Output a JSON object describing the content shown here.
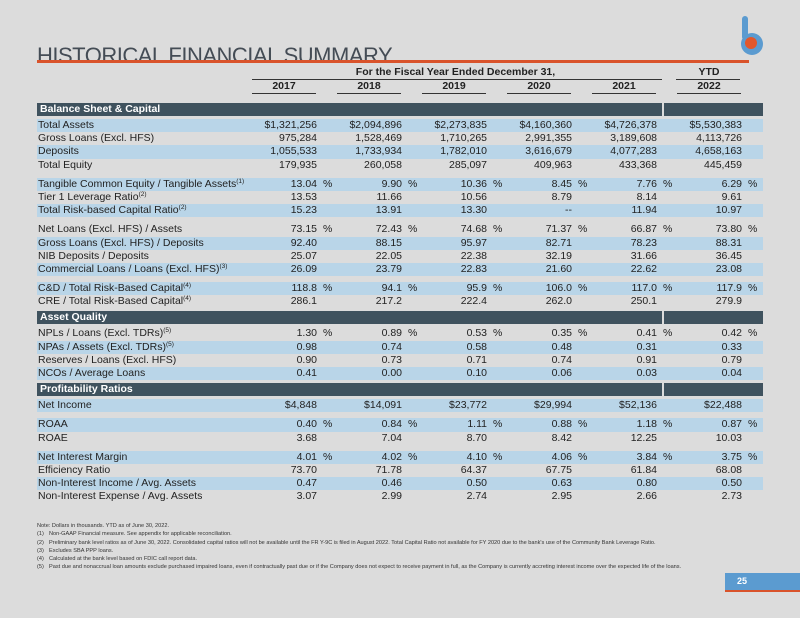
{
  "title": "HISTORICAL FINANCIAL SUMMARY",
  "header": {
    "period_label": "For the Fiscal Year Ended December 31,",
    "ytd_label": "YTD",
    "years": [
      "2017",
      "2018",
      "2019",
      "2020",
      "2021",
      "2022"
    ]
  },
  "sections": [
    {
      "title": "Balance Sheet & Capital",
      "groups": [
        [
          {
            "label": "Total Assets",
            "sup": "",
            "pct": false,
            "shade": true,
            "values": [
              "$1,321,256",
              "$2,094,896",
              "$2,273,835",
              "$4,160,360",
              "$4,726,378",
              "$5,530,383"
            ]
          },
          {
            "label": "Gross Loans (Excl. HFS)",
            "sup": "",
            "pct": false,
            "shade": false,
            "values": [
              "975,284",
              "1,528,469",
              "1,710,265",
              "2,991,355",
              "3,189,608",
              "4,113,726"
            ]
          },
          {
            "label": "Deposits",
            "sup": "",
            "pct": false,
            "shade": true,
            "values": [
              "1,055,533",
              "1,733,934",
              "1,782,010",
              "3,616,679",
              "4,077,283",
              "4,658,163"
            ]
          },
          {
            "label": "Total Equity",
            "sup": "",
            "pct": false,
            "shade": false,
            "values": [
              "179,935",
              "260,058",
              "285,097",
              "409,963",
              "433,368",
              "445,459"
            ]
          }
        ],
        [
          {
            "label": "Tangible Common Equity / Tangible Assets",
            "sup": "(1)",
            "pct": true,
            "shade": true,
            "values": [
              "13.04",
              "9.90",
              "10.36",
              "8.45",
              "7.76",
              "6.29"
            ]
          },
          {
            "label": "Tier 1 Leverage Ratio",
            "sup": "(2)",
            "pct": false,
            "shade": false,
            "values": [
              "13.53",
              "11.66",
              "10.56",
              "8.79",
              "8.14",
              "9.61"
            ]
          },
          {
            "label": "Total Risk-based Capital Ratio",
            "sup": "(2)",
            "pct": false,
            "shade": true,
            "values": [
              "15.23",
              "13.91",
              "13.30",
              "--",
              "11.94",
              "10.97"
            ]
          }
        ],
        [
          {
            "label": "Net Loans (Excl. HFS) / Assets",
            "sup": "",
            "pct": true,
            "shade": false,
            "values": [
              "73.15",
              "72.43",
              "74.68",
              "71.37",
              "66.87",
              "73.80"
            ]
          },
          {
            "label": "Gross Loans (Excl. HFS) / Deposits",
            "sup": "",
            "pct": false,
            "shade": true,
            "values": [
              "92.40",
              "88.15",
              "95.97",
              "82.71",
              "78.23",
              "88.31"
            ]
          },
          {
            "label": "NIB Deposits / Deposits",
            "sup": "",
            "pct": false,
            "shade": false,
            "values": [
              "25.07",
              "22.05",
              "22.38",
              "32.19",
              "31.66",
              "36.45"
            ]
          },
          {
            "label": "Commercial Loans / Loans (Excl. HFS)",
            "sup": "(3)",
            "pct": false,
            "shade": true,
            "values": [
              "26.09",
              "23.79",
              "22.83",
              "21.60",
              "22.62",
              "23.08"
            ]
          }
        ],
        [
          {
            "label": "C&D / Total Risk-Based Capital",
            "sup": "(4)",
            "pct": true,
            "shade": true,
            "values": [
              "118.8",
              "94.1",
              "95.9",
              "106.0",
              "117.0",
              "117.9"
            ]
          },
          {
            "label": "CRE / Total Risk-Based Capital",
            "sup": "(4)",
            "pct": false,
            "shade": false,
            "values": [
              "286.1",
              "217.2",
              "222.4",
              "262.0",
              "250.1",
              "279.9"
            ]
          }
        ]
      ]
    },
    {
      "title": "Asset Quality",
      "groups": [
        [
          {
            "label": "NPLs / Loans (Excl. TDRs)",
            "sup": "(5)",
            "pct": true,
            "shade": false,
            "values": [
              "1.30",
              "0.89",
              "0.53",
              "0.35",
              "0.41",
              "0.42"
            ]
          },
          {
            "label": "NPAs / Assets (Excl. TDRs)",
            "sup": "(5)",
            "pct": false,
            "shade": true,
            "values": [
              "0.98",
              "0.74",
              "0.58",
              "0.48",
              "0.31",
              "0.33"
            ]
          },
          {
            "label": "Reserves / Loans (Excl. HFS)",
            "sup": "",
            "pct": false,
            "shade": false,
            "values": [
              "0.90",
              "0.73",
              "0.71",
              "0.74",
              "0.91",
              "0.79"
            ]
          },
          {
            "label": "NCOs / Average Loans",
            "sup": "",
            "pct": false,
            "shade": true,
            "values": [
              "0.41",
              "0.00",
              "0.10",
              "0.06",
              "0.03",
              "0.04"
            ]
          }
        ]
      ]
    },
    {
      "title": "Profitability Ratios",
      "groups": [
        [
          {
            "label": "Net Income",
            "sup": "",
            "pct": false,
            "shade": true,
            "values": [
              "$4,848",
              "$14,091",
              "$23,772",
              "$29,994",
              "$52,136",
              "$22,488"
            ]
          }
        ],
        [
          {
            "label": "ROAA",
            "sup": "",
            "pct": true,
            "shade": true,
            "values": [
              "0.40",
              "0.84",
              "1.11",
              "0.88",
              "1.18",
              "0.87"
            ]
          },
          {
            "label": "ROAE",
            "sup": "",
            "pct": false,
            "shade": false,
            "values": [
              "3.68",
              "7.04",
              "8.70",
              "8.42",
              "12.25",
              "10.03"
            ]
          }
        ],
        [
          {
            "label": "Net Interest Margin",
            "sup": "",
            "pct": true,
            "shade": true,
            "values": [
              "4.01",
              "4.02",
              "4.10",
              "4.06",
              "3.84",
              "3.75"
            ]
          },
          {
            "label": "Efficiency Ratio",
            "sup": "",
            "pct": false,
            "shade": false,
            "values": [
              "73.70",
              "71.78",
              "64.37",
              "67.75",
              "61.84",
              "68.08"
            ]
          },
          {
            "label": "Non-Interest Income / Avg. Assets",
            "sup": "",
            "pct": false,
            "shade": true,
            "values": [
              "0.47",
              "0.46",
              "0.50",
              "0.63",
              "0.80",
              "0.50"
            ]
          },
          {
            "label": "Non-Interest Expense / Avg. Assets",
            "sup": "",
            "pct": false,
            "shade": false,
            "values": [
              "3.07",
              "2.99",
              "2.74",
              "2.95",
              "2.66",
              "2.73"
            ]
          }
        ]
      ]
    }
  ],
  "percent_sign": "%",
  "notes": {
    "intro": "Note: Dollars in thousands. YTD as of June 30, 2022.",
    "items": [
      {
        "marker": "(1)",
        "text": "Non-GAAP Financial measure. See appendix for applicable reconciliation."
      },
      {
        "marker": "(2)",
        "text": "Preliminary bank level ratios as of June 30, 2022. Consolidated capital ratios will not be available until the FR Y-9C is filed in August 2022. Total Capital Ratio not available for FY 2020 due to the bank's use of the Community Bank Leverage Ratio."
      },
      {
        "marker": "(3)",
        "text": "Excludes SBA PPP loans."
      },
      {
        "marker": "(4)",
        "text": "Calculated at the bank level based on FDIC call report data."
      },
      {
        "marker": "(5)",
        "text": "Past due and nonaccrual loan amounts exclude purchased impaired loans, even if contractually past due or if the Company does not expect to receive payment in full, as the Company is currently accreting interest income over the expected life of the loans."
      }
    ]
  },
  "page_number": "25",
  "colors": {
    "accent": "#d9532b",
    "header_bar": "#3f525e",
    "row_shade": "#b9d5e8",
    "logo_blue": "#5b9bd0"
  }
}
